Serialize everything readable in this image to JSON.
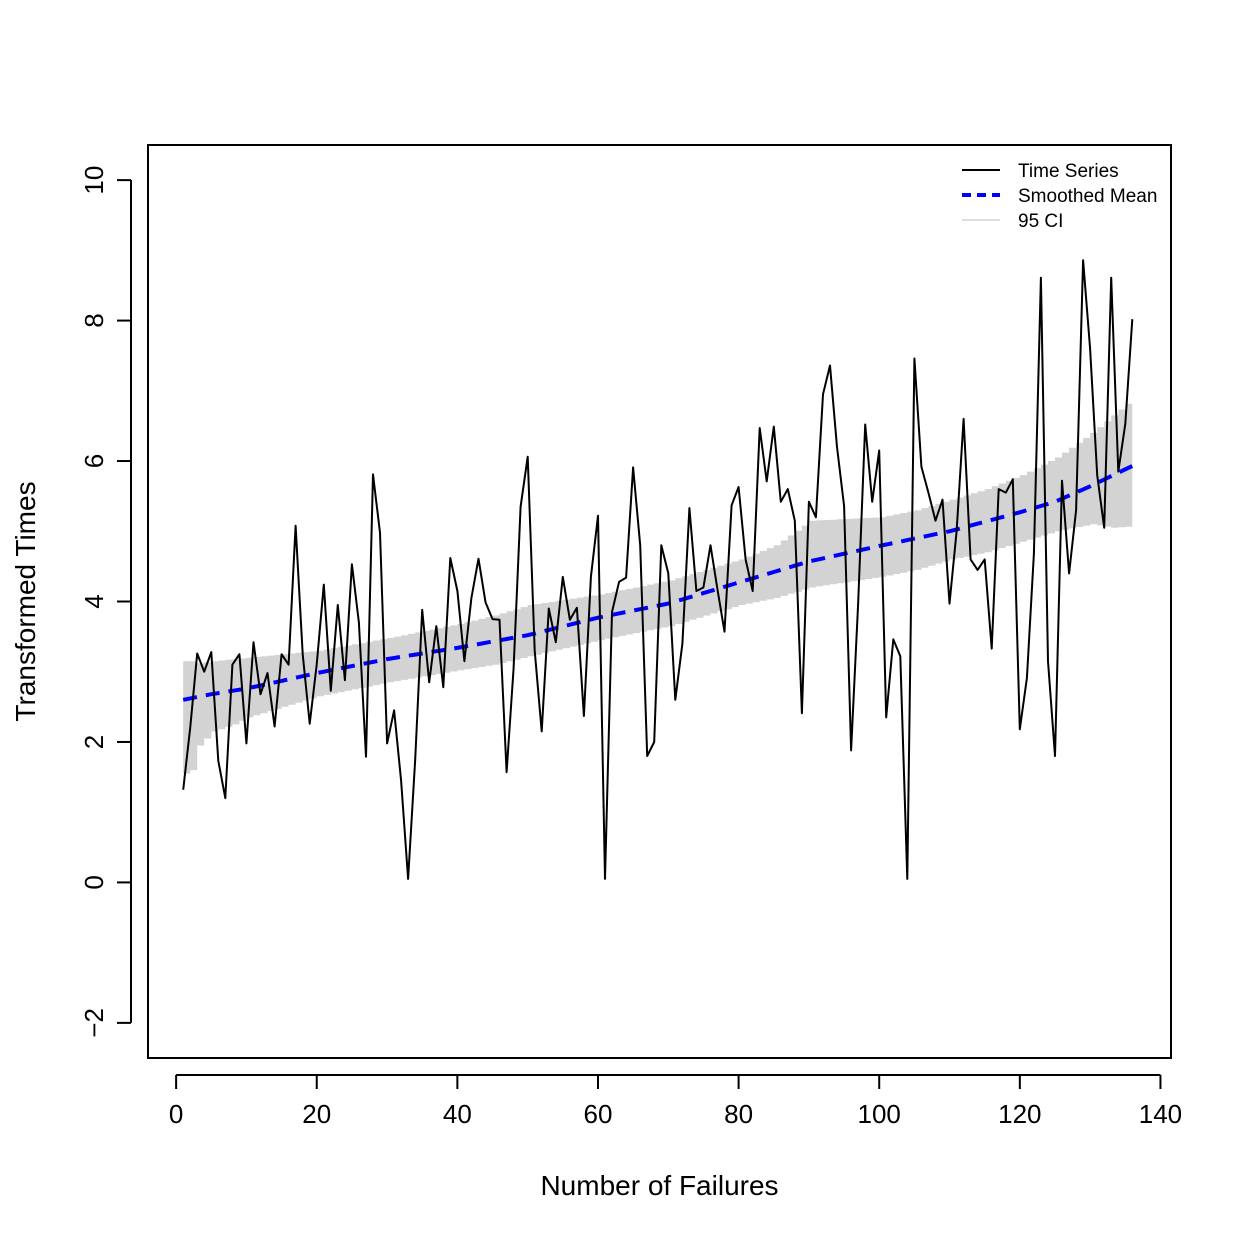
{
  "chart_data": {
    "type": "line",
    "title": "",
    "xlabel": "Number of Failures",
    "ylabel": "Transformed Times",
    "xlim": [
      -4,
      141.5
    ],
    "ylim": [
      -2.5,
      10.5
    ],
    "xticks": [
      0,
      20,
      40,
      60,
      80,
      100,
      120,
      140
    ],
    "yticks": [
      -2,
      0,
      2,
      4,
      6,
      8,
      10
    ],
    "xtick_labels": [
      "0",
      "20",
      "40",
      "60",
      "80",
      "100",
      "120",
      "140"
    ],
    "ytick_labels": [
      "−2",
      "0",
      "2",
      "4",
      "6",
      "8",
      "10"
    ],
    "grid": false,
    "legend_position": "top-right",
    "colors": {
      "time_series": "#000000",
      "smoothed_mean": "#0000ff",
      "ci_band": "#d3d3d3"
    },
    "legend": [
      {
        "label": "Time Series",
        "style": "solid-black"
      },
      {
        "label": "Smoothed Mean",
        "style": "dashed-blue"
      },
      {
        "label": "95 CI",
        "style": "grey-band"
      }
    ],
    "series": [
      {
        "name": "Time Series",
        "x": [
          1,
          2,
          3,
          4,
          5,
          6,
          7,
          8,
          9,
          10,
          11,
          12,
          13,
          14,
          15,
          16,
          17,
          18,
          19,
          20,
          21,
          22,
          23,
          24,
          25,
          26,
          27,
          28,
          29,
          30,
          31,
          32,
          33,
          34,
          35,
          36,
          37,
          38,
          39,
          40,
          41,
          42,
          43,
          44,
          45,
          46,
          47,
          48,
          49,
          50,
          51,
          52,
          53,
          54,
          55,
          56,
          57,
          58,
          59,
          60,
          61,
          62,
          63,
          64,
          65,
          66,
          67,
          68,
          69,
          70,
          71,
          72,
          73,
          74,
          75,
          76,
          77,
          78,
          79,
          80,
          81,
          82,
          83,
          84,
          85,
          86,
          87,
          88,
          89,
          90,
          91,
          92,
          93,
          94,
          95,
          96,
          97,
          98,
          99,
          100,
          101,
          102,
          103,
          104,
          105,
          106,
          107,
          108,
          109,
          110,
          111,
          112,
          113,
          114,
          115,
          116,
          117,
          118,
          119,
          120,
          121,
          122,
          123,
          124,
          125,
          126,
          127,
          128,
          129,
          130,
          131,
          132,
          133,
          134,
          135,
          136
        ],
        "y": [
          1.32,
          2.2,
          3.26,
          3.0,
          3.28,
          1.73,
          1.2,
          3.1,
          3.25,
          1.98,
          3.42,
          2.68,
          2.98,
          2.22,
          3.25,
          3.1,
          5.08,
          3.25,
          2.26,
          3.1,
          4.24,
          2.73,
          3.95,
          2.88,
          4.53,
          3.7,
          1.79,
          5.81,
          4.98,
          1.98,
          2.45,
          1.45,
          0.05,
          1.75,
          3.88,
          2.85,
          3.65,
          2.78,
          4.62,
          4.15,
          3.15,
          4.05,
          4.61,
          3.99,
          3.75,
          3.74,
          1.57,
          3.05,
          5.35,
          6.06,
          3.3,
          2.15,
          3.9,
          3.42,
          4.35,
          3.74,
          3.91,
          2.37,
          4.35,
          5.22,
          0.05,
          3.85,
          4.28,
          4.34,
          5.91,
          4.8,
          1.8,
          2.0,
          4.8,
          4.4,
          2.6,
          3.4,
          5.33,
          4.15,
          4.2,
          4.8,
          4.17,
          3.57,
          5.37,
          5.63,
          4.6,
          4.15,
          6.47,
          5.71,
          6.49,
          5.42,
          5.6,
          5.15,
          2.41,
          5.42,
          5.2,
          6.95,
          7.36,
          6.2,
          5.36,
          1.88,
          3.96,
          6.52,
          5.42,
          6.15,
          2.35,
          3.46,
          3.22,
          0.05,
          7.46,
          5.92,
          5.55,
          5.15,
          5.45,
          3.97,
          5.0,
          6.6,
          4.6,
          4.45,
          4.6,
          3.33,
          5.6,
          5.55,
          5.74,
          2.18,
          2.91,
          4.68,
          8.61,
          3.15,
          1.8,
          5.72,
          4.4,
          5.3,
          8.86,
          7.6,
          5.8,
          5.05,
          8.61,
          5.85,
          6.53,
          8.02
        ]
      },
      {
        "name": "Smoothed Mean",
        "x": [
          1,
          5,
          10,
          20,
          30,
          40,
          50,
          60,
          70,
          80,
          90,
          100,
          110,
          120,
          125,
          130,
          136
        ],
        "y": [
          2.6,
          2.68,
          2.76,
          2.98,
          3.18,
          3.34,
          3.52,
          3.77,
          3.97,
          4.27,
          4.57,
          4.79,
          5.0,
          5.27,
          5.42,
          5.64,
          5.93
        ]
      },
      {
        "name": "95 CI",
        "x": [
          1,
          2,
          3,
          5,
          8,
          10,
          15,
          20,
          30,
          40,
          45,
          50,
          60,
          70,
          80,
          85,
          90,
          100,
          105,
          110,
          115,
          120,
          125,
          130,
          133,
          136
        ],
        "lower": [
          1.55,
          1.6,
          1.95,
          2.15,
          2.25,
          2.35,
          2.5,
          2.65,
          2.85,
          3.02,
          3.1,
          3.22,
          3.45,
          3.65,
          3.95,
          4.05,
          4.2,
          4.35,
          4.45,
          4.6,
          4.7,
          4.85,
          5.0,
          5.1,
          5.05,
          5.07
        ],
        "upper": [
          3.15,
          3.15,
          3.12,
          3.15,
          3.18,
          3.2,
          3.25,
          3.3,
          3.48,
          3.68,
          3.8,
          3.95,
          4.1,
          4.3,
          4.6,
          4.8,
          5.15,
          5.2,
          5.3,
          5.45,
          5.6,
          5.8,
          6.05,
          6.4,
          6.65,
          6.9
        ]
      }
    ]
  }
}
